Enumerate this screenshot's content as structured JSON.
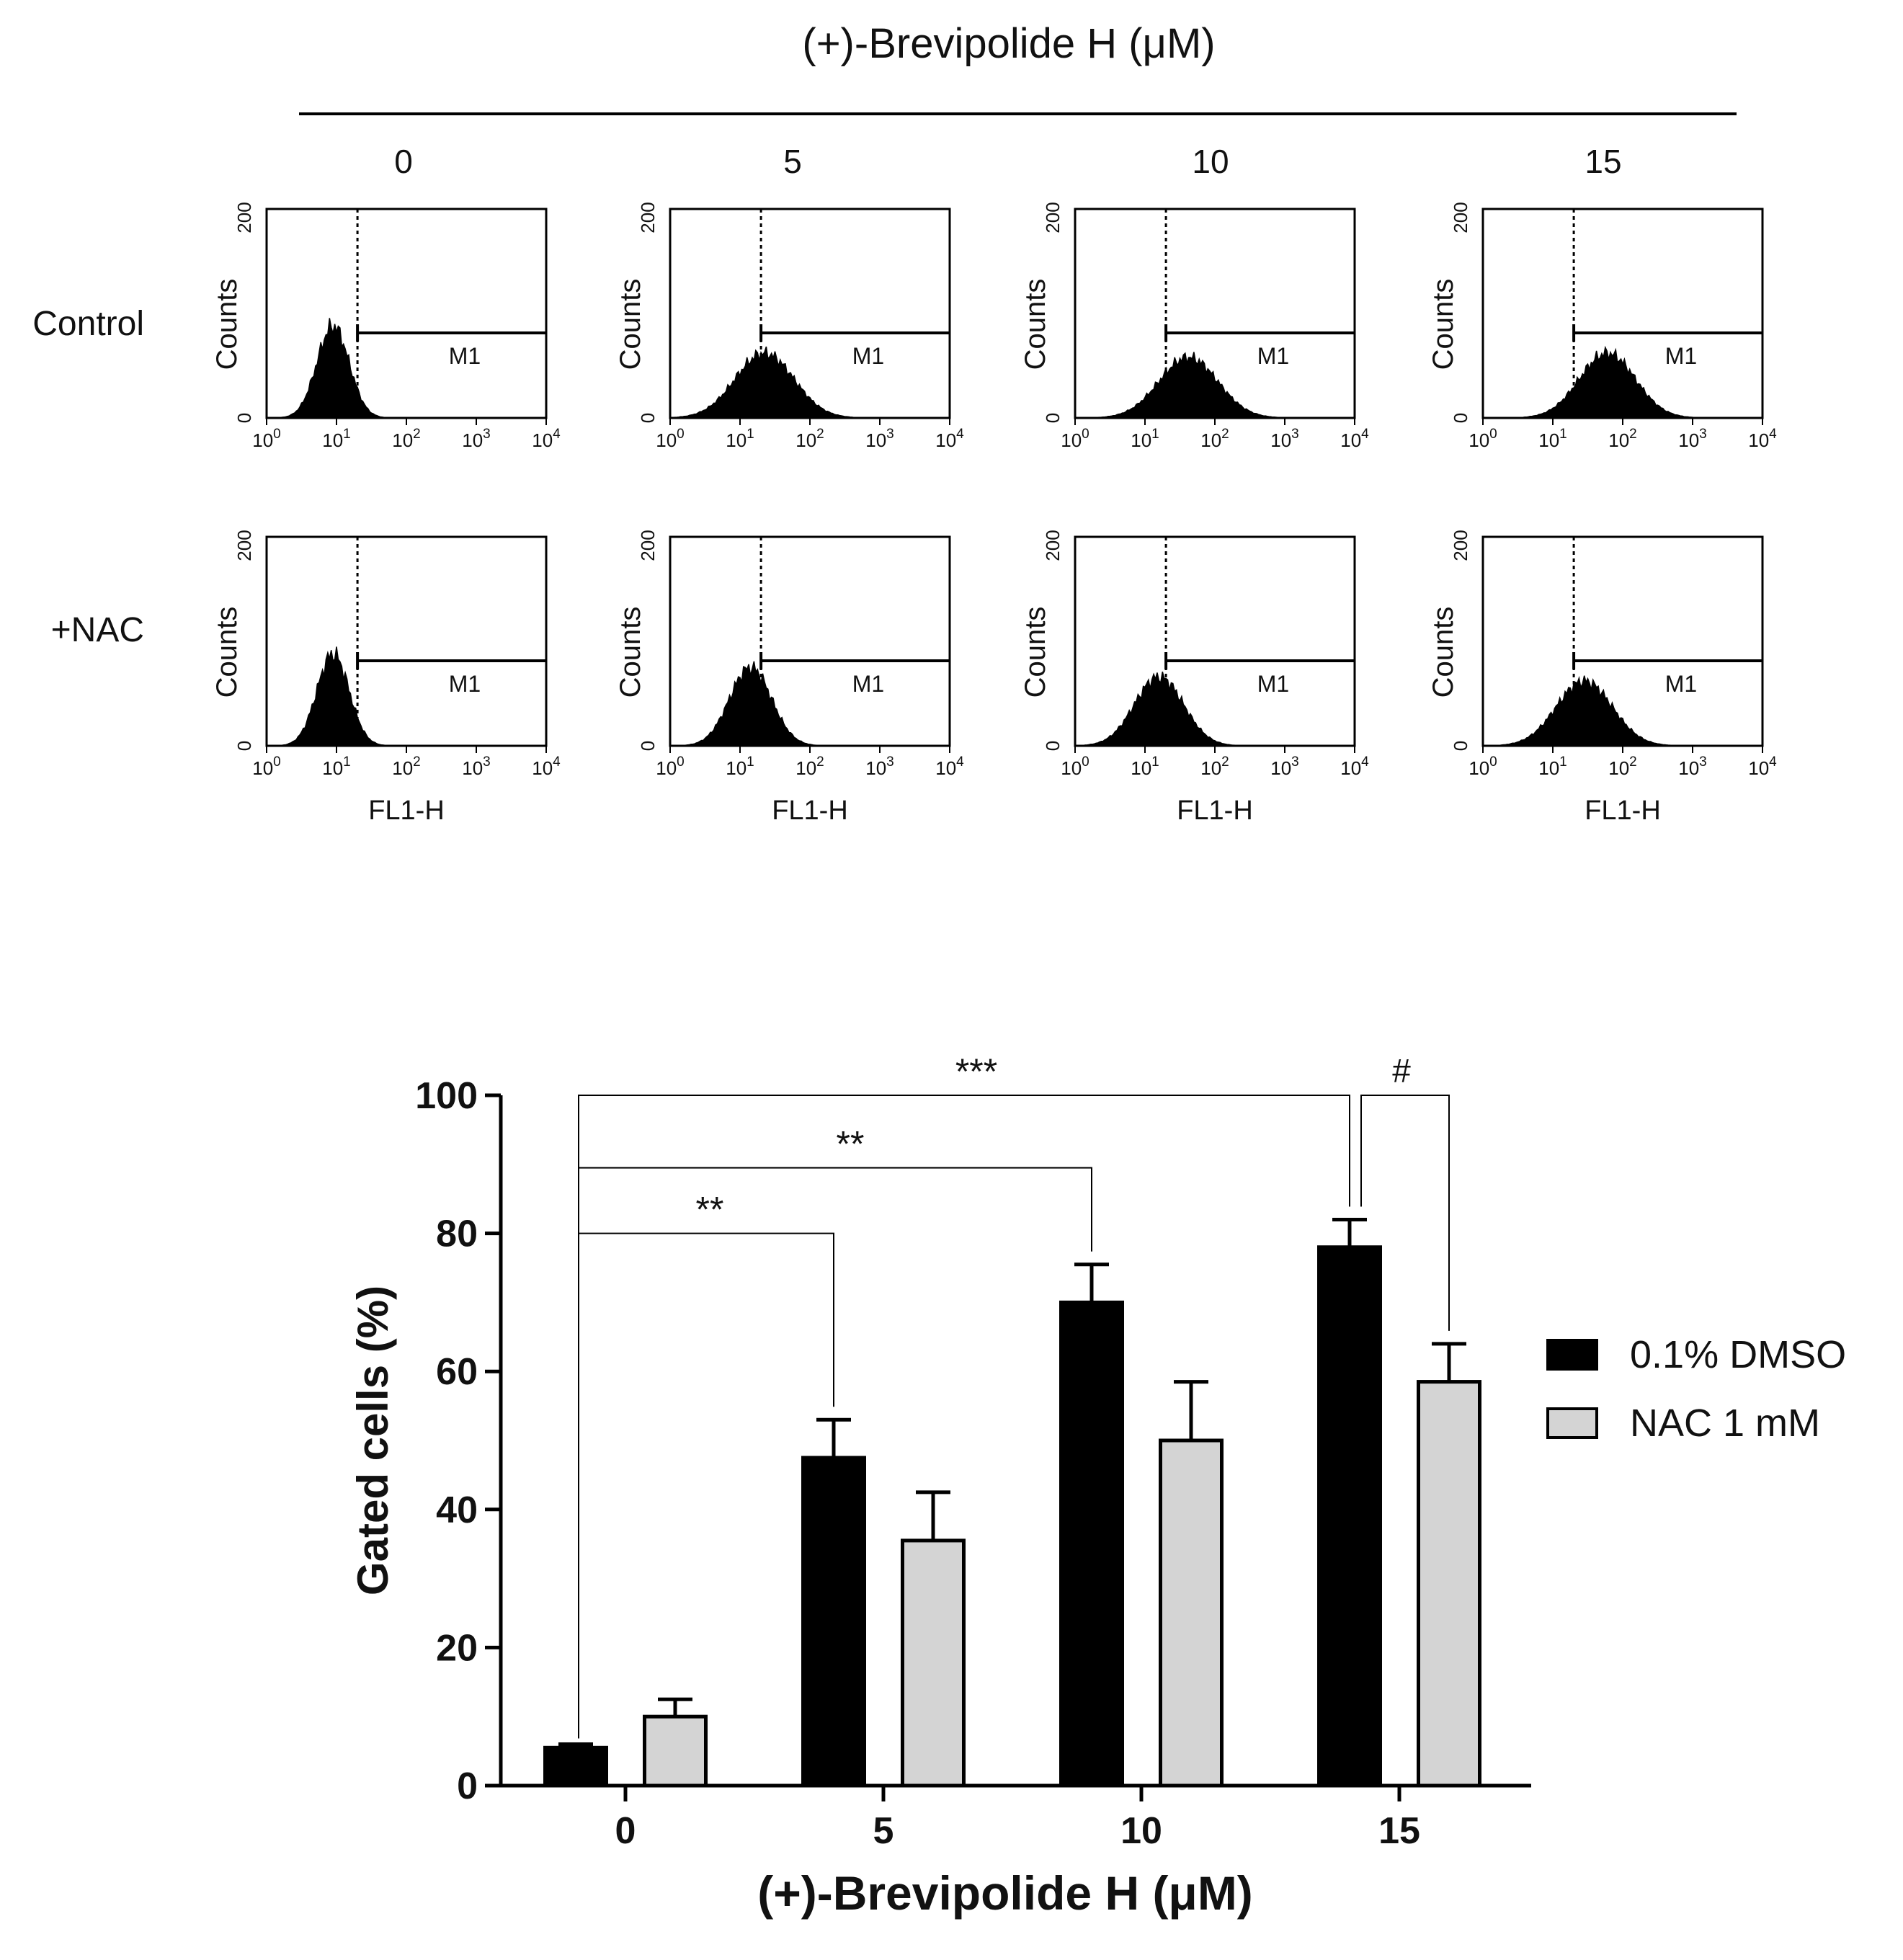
{
  "figure_title": "(+)-Brevipolide H (μM)",
  "doses": [
    "0",
    "5",
    "10",
    "15"
  ],
  "row_labels": [
    "Control",
    "+NAC"
  ],
  "histogram": {
    "y_axis_label": "Counts",
    "y_ticks": [
      "0",
      "200"
    ],
    "x_axis_label": "FL1-H",
    "x_tick_base": "10",
    "x_tick_exponents": [
      "0",
      "1",
      "2",
      "3",
      "4"
    ],
    "marker_label": "M1",
    "gate_log10": 1.3
  },
  "histogram_panels": [
    {
      "row": "Control",
      "dose": "0",
      "peak_log10": 0.95,
      "spread": 0.23,
      "peak_count": 88
    },
    {
      "row": "Control",
      "dose": "5",
      "peak_log10": 1.35,
      "spread": 0.42,
      "peak_count": 62
    },
    {
      "row": "Control",
      "dose": "10",
      "peak_log10": 1.62,
      "spread": 0.42,
      "peak_count": 58
    },
    {
      "row": "Control",
      "dose": "15",
      "peak_log10": 1.78,
      "spread": 0.4,
      "peak_count": 62
    },
    {
      "row": "+NAC",
      "dose": "0",
      "peak_log10": 0.95,
      "spread": 0.23,
      "peak_count": 88
    },
    {
      "row": "+NAC",
      "dose": "5",
      "peak_log10": 1.15,
      "spread": 0.3,
      "peak_count": 75
    },
    {
      "row": "+NAC",
      "dose": "10",
      "peak_log10": 1.2,
      "spread": 0.35,
      "peak_count": 66
    },
    {
      "row": "+NAC",
      "dose": "15",
      "peak_log10": 1.45,
      "spread": 0.4,
      "peak_count": 62
    }
  ],
  "chart_data": {
    "type": "bar",
    "title": "",
    "xlabel": "(+)-Brevipolide H (μM)",
    "ylabel": "Gated cells (%)",
    "categories": [
      "0",
      "5",
      "10",
      "15"
    ],
    "ylim": [
      0,
      100
    ],
    "y_ticks": [
      "0",
      "20",
      "40",
      "60",
      "80",
      "100"
    ],
    "series": [
      {
        "name": "0.1% DMSO",
        "color": "#000000",
        "values": [
          5.5,
          47.5,
          70,
          78
        ],
        "errors": [
          0.5,
          5.5,
          5.5,
          4
        ]
      },
      {
        "name": "NAC 1 mM",
        "color": "#d4d4d4",
        "values": [
          10,
          35.5,
          50,
          58.5
        ],
        "errors": [
          2.5,
          7,
          8.5,
          5.5
        ]
      }
    ],
    "legend_position": "right",
    "significance": [
      {
        "label": "**",
        "from": "0 (0.1% DMSO)",
        "to": "5 (0.1% DMSO)"
      },
      {
        "label": "**",
        "from": "0 (0.1% DMSO)",
        "to": "10 (0.1% DMSO)"
      },
      {
        "label": "***",
        "from": "0 (0.1% DMSO)",
        "to": "15 (0.1% DMSO)"
      },
      {
        "label": "#",
        "from": "15 (0.1% DMSO)",
        "to": "15 (NAC 1 mM)"
      }
    ]
  }
}
